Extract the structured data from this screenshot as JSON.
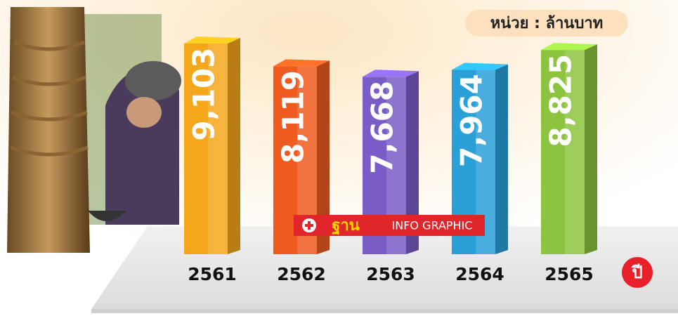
{
  "chart_data": {
    "type": "bar",
    "unit_label": "หน่วย : ล้านบาท",
    "x_label": "ปี",
    "logo": {
      "brand": "ฐาน",
      "text": "INFO GRAPHIC"
    },
    "categories": [
      "2561",
      "2562",
      "2563",
      "2564",
      "2565"
    ],
    "values": [
      9103,
      8119,
      7668,
      7964,
      8825
    ],
    "value_labels": [
      "9,103",
      "8,119",
      "7,668",
      "7,964",
      "8,825"
    ],
    "colors": [
      "#f5a71c",
      "#ef5b1f",
      "#7a5cc6",
      "#2a9fd8",
      "#8cc43f"
    ]
  }
}
